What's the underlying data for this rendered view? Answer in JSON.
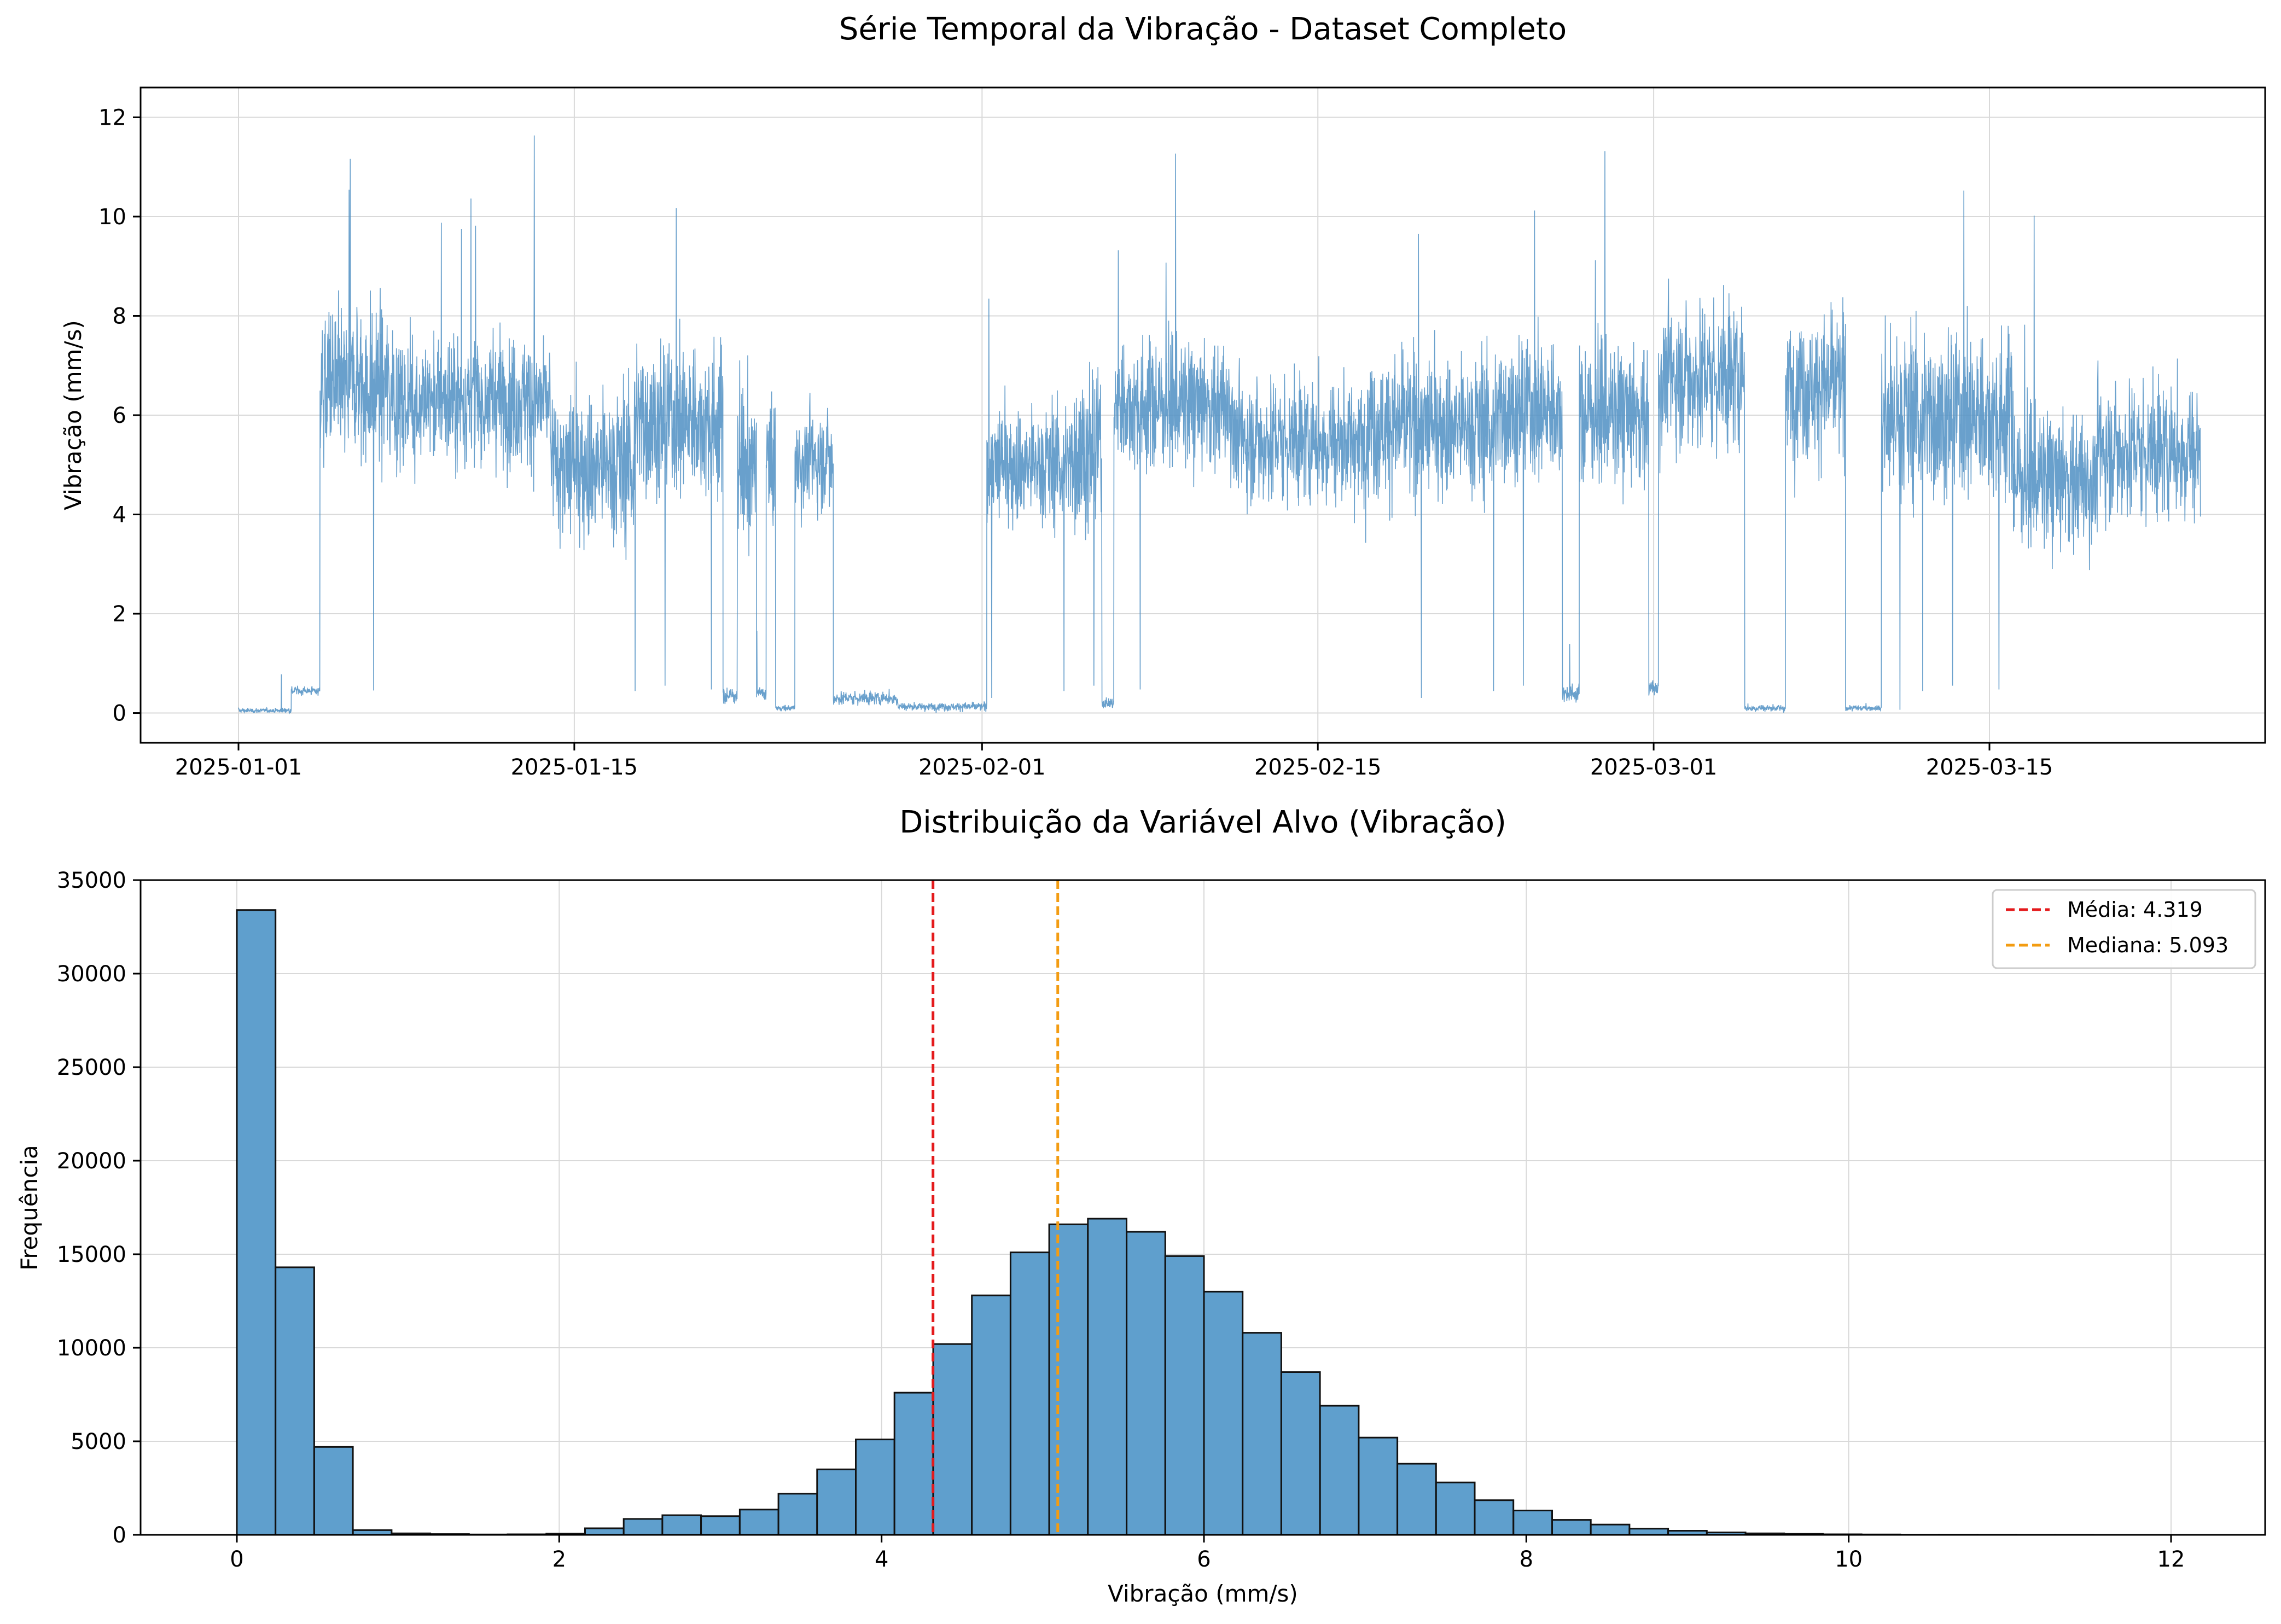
{
  "colors": {
    "series": "#4f8fc3",
    "bar_fill": "#5f9fcd",
    "bar_edge": "#111111",
    "grid": "#d9d9d9",
    "mean": "#e41a1c",
    "median": "#f39c12"
  },
  "chart_data": [
    {
      "type": "line",
      "title": "Série Temporal da Vibração - Dataset Completo",
      "xlabel": "",
      "ylabel": "Vibração (mm/s)",
      "xlim_days": [
        -3,
        64
      ],
      "ylim": [
        -0.6,
        12.6
      ],
      "x_ticks": [
        {
          "day": 0,
          "label": "2025-01-01"
        },
        {
          "day": 14,
          "label": "2025-01-15"
        },
        {
          "day": 31,
          "label": "2025-02-01"
        },
        {
          "day": 45,
          "label": "2025-02-15"
        },
        {
          "day": 59,
          "label": "2025-03-01"
        },
        {
          "day": 73,
          "label": "2025-03-15"
        }
      ],
      "y_ticks": [
        0,
        2,
        4,
        6,
        8,
        10,
        12
      ],
      "grid": true,
      "segments": [
        {
          "start": 0.0,
          "end": 2.2,
          "mean": 0.05,
          "sd": 0.04
        },
        {
          "start": 2.2,
          "end": 3.4,
          "mean": 0.45,
          "sd": 0.08
        },
        {
          "start": 3.4,
          "end": 6.5,
          "mean": 6.6,
          "sd": 1.3
        },
        {
          "start": 6.5,
          "end": 13.0,
          "mean": 6.3,
          "sd": 1.1
        },
        {
          "start": 13.0,
          "end": 16.5,
          "mean": 5.0,
          "sd": 1.3
        },
        {
          "start": 16.5,
          "end": 20.2,
          "mean": 5.9,
          "sd": 1.3
        },
        {
          "start": 20.2,
          "end": 20.8,
          "mean": 0.35,
          "sd": 0.15
        },
        {
          "start": 20.8,
          "end": 21.6,
          "mean": 5.0,
          "sd": 1.4
        },
        {
          "start": 21.6,
          "end": 22.0,
          "mean": 0.4,
          "sd": 0.1
        },
        {
          "start": 22.0,
          "end": 22.4,
          "mean": 5.0,
          "sd": 1.2
        },
        {
          "start": 22.4,
          "end": 23.2,
          "mean": 0.1,
          "sd": 0.05
        },
        {
          "start": 23.2,
          "end": 24.8,
          "mean": 5.1,
          "sd": 0.9
        },
        {
          "start": 24.8,
          "end": 27.5,
          "mean": 0.3,
          "sd": 0.12
        },
        {
          "start": 27.5,
          "end": 31.2,
          "mean": 0.13,
          "sd": 0.07
        },
        {
          "start": 31.2,
          "end": 34.8,
          "mean": 5.0,
          "sd": 1.0
        },
        {
          "start": 34.8,
          "end": 36.0,
          "mean": 5.3,
          "sd": 1.4
        },
        {
          "start": 36.0,
          "end": 36.5,
          "mean": 0.2,
          "sd": 0.1
        },
        {
          "start": 36.5,
          "end": 41.5,
          "mean": 6.2,
          "sd": 1.1
        },
        {
          "start": 41.5,
          "end": 47.0,
          "mean": 5.5,
          "sd": 1.1
        },
        {
          "start": 47.0,
          "end": 52.5,
          "mean": 5.8,
          "sd": 1.2
        },
        {
          "start": 52.5,
          "end": 55.2,
          "mean": 6.1,
          "sd": 1.2
        },
        {
          "start": 55.2,
          "end": 55.9,
          "mean": 0.4,
          "sd": 0.15
        },
        {
          "start": 55.9,
          "end": 58.8,
          "mean": 6.0,
          "sd": 1.2
        },
        {
          "start": 58.8,
          "end": 59.2,
          "mean": 0.5,
          "sd": 0.15
        },
        {
          "start": 59.2,
          "end": 62.8,
          "mean": 6.8,
          "sd": 1.3
        },
        {
          "start": 62.8,
          "end": 64.5,
          "mean": 0.1,
          "sd": 0.06
        },
        {
          "start": 64.5,
          "end": 67.0,
          "mean": 6.6,
          "sd": 1.2
        },
        {
          "start": 67.0,
          "end": 68.5,
          "mean": 0.1,
          "sd": 0.05
        },
        {
          "start": 68.5,
          "end": 74.0,
          "mean": 6.0,
          "sd": 1.4
        },
        {
          "start": 74.0,
          "end": 77.5,
          "mean": 4.7,
          "sd": 1.2
        },
        {
          "start": 77.5,
          "end": 81.8,
          "mean": 5.3,
          "sd": 1.2
        }
      ]
    },
    {
      "type": "bar",
      "title": "Distribuição da Variável Alvo (Vibração)",
      "xlabel": "Vibração (mm/s)",
      "ylabel": "Frequência",
      "xlim": [
        -0.6,
        12.6
      ],
      "ylim": [
        0,
        35000
      ],
      "x_ticks": [
        0,
        2,
        4,
        6,
        8,
        10,
        12
      ],
      "y_ticks": [
        0,
        5000,
        10000,
        15000,
        20000,
        25000,
        30000,
        35000
      ],
      "grid": true,
      "bin_start": 0,
      "bin_width": 0.24,
      "values": [
        33400,
        14300,
        4700,
        250,
        80,
        40,
        20,
        30,
        60,
        350,
        850,
        1050,
        1000,
        1350,
        2200,
        3500,
        5100,
        7600,
        10200,
        12800,
        15100,
        16600,
        16900,
        16200,
        14900,
        13000,
        10800,
        8700,
        6900,
        5200,
        3800,
        2800,
        1850,
        1300,
        800,
        550,
        330,
        220,
        130,
        80,
        50,
        30,
        20,
        10,
        8,
        5,
        3,
        2,
        1,
        1
      ],
      "reference_lines": [
        {
          "name": "mean",
          "label": "Média: 4.319",
          "value": 4.319
        },
        {
          "name": "median",
          "label": "Mediana: 5.093",
          "value": 5.093
        }
      ],
      "legend_position": "top-right"
    }
  ]
}
